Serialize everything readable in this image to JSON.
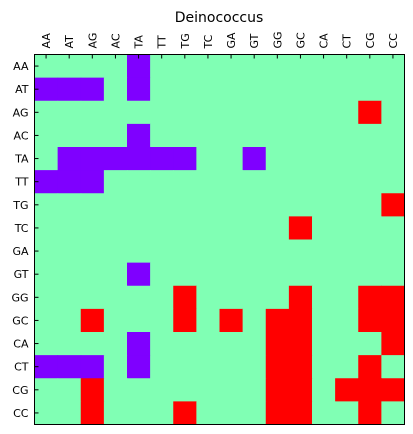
{
  "chart_data": {
    "type": "heatmap",
    "title": "Deinococcus",
    "xlabel": "",
    "ylabel": "",
    "x_categories": [
      "AA",
      "AT",
      "AG",
      "AC",
      "TA",
      "TT",
      "TG",
      "TC",
      "GA",
      "GT",
      "GG",
      "GC",
      "CA",
      "CT",
      "CG",
      "CC"
    ],
    "y_categories": [
      "AA",
      "AT",
      "AG",
      "AC",
      "TA",
      "TT",
      "TG",
      "TC",
      "GA",
      "GT",
      "GG",
      "GC",
      "CA",
      "CT",
      "CG",
      "CC"
    ],
    "x_axis_position": "top",
    "grid": false,
    "legend": "none",
    "colormap": {
      "-1": "#7f00ff",
      "0": "#80ffb4",
      "1": "#ff0000"
    },
    "values": [
      [
        0,
        0,
        0,
        0,
        -1,
        0,
        0,
        0,
        0,
        0,
        0,
        0,
        0,
        0,
        0,
        0
      ],
      [
        -1,
        -1,
        -1,
        0,
        -1,
        0,
        0,
        0,
        0,
        0,
        0,
        0,
        0,
        0,
        0,
        0
      ],
      [
        0,
        0,
        0,
        0,
        0,
        0,
        0,
        0,
        0,
        0,
        0,
        0,
        0,
        0,
        1,
        0
      ],
      [
        0,
        0,
        0,
        0,
        -1,
        0,
        0,
        0,
        0,
        0,
        0,
        0,
        0,
        0,
        0,
        0
      ],
      [
        0,
        -1,
        -1,
        -1,
        -1,
        -1,
        -1,
        0,
        0,
        -1,
        0,
        0,
        0,
        0,
        0,
        0
      ],
      [
        -1,
        -1,
        -1,
        0,
        0,
        0,
        0,
        0,
        0,
        0,
        0,
        0,
        0,
        0,
        0,
        0
      ],
      [
        0,
        0,
        0,
        0,
        0,
        0,
        0,
        0,
        0,
        0,
        0,
        0,
        0,
        0,
        0,
        1
      ],
      [
        0,
        0,
        0,
        0,
        0,
        0,
        0,
        0,
        0,
        0,
        0,
        1,
        0,
        0,
        0,
        0
      ],
      [
        0,
        0,
        0,
        0,
        0,
        0,
        0,
        0,
        0,
        0,
        0,
        0,
        0,
        0,
        0,
        0
      ],
      [
        0,
        0,
        0,
        0,
        -1,
        0,
        0,
        0,
        0,
        0,
        0,
        0,
        0,
        0,
        0,
        0
      ],
      [
        0,
        0,
        0,
        0,
        0,
        0,
        1,
        0,
        0,
        0,
        0,
        1,
        0,
        0,
        1,
        1
      ],
      [
        0,
        0,
        1,
        0,
        0,
        0,
        1,
        0,
        1,
        0,
        1,
        1,
        0,
        0,
        1,
        1
      ],
      [
        0,
        0,
        0,
        0,
        -1,
        0,
        0,
        0,
        0,
        0,
        1,
        1,
        0,
        0,
        0,
        1
      ],
      [
        -1,
        -1,
        -1,
        0,
        -1,
        0,
        0,
        0,
        0,
        0,
        1,
        1,
        0,
        0,
        1,
        0
      ],
      [
        0,
        0,
        1,
        0,
        0,
        0,
        0,
        0,
        0,
        0,
        1,
        1,
        0,
        1,
        1,
        1
      ],
      [
        0,
        0,
        1,
        0,
        0,
        0,
        1,
        0,
        0,
        0,
        1,
        1,
        0,
        0,
        1,
        0
      ]
    ]
  }
}
